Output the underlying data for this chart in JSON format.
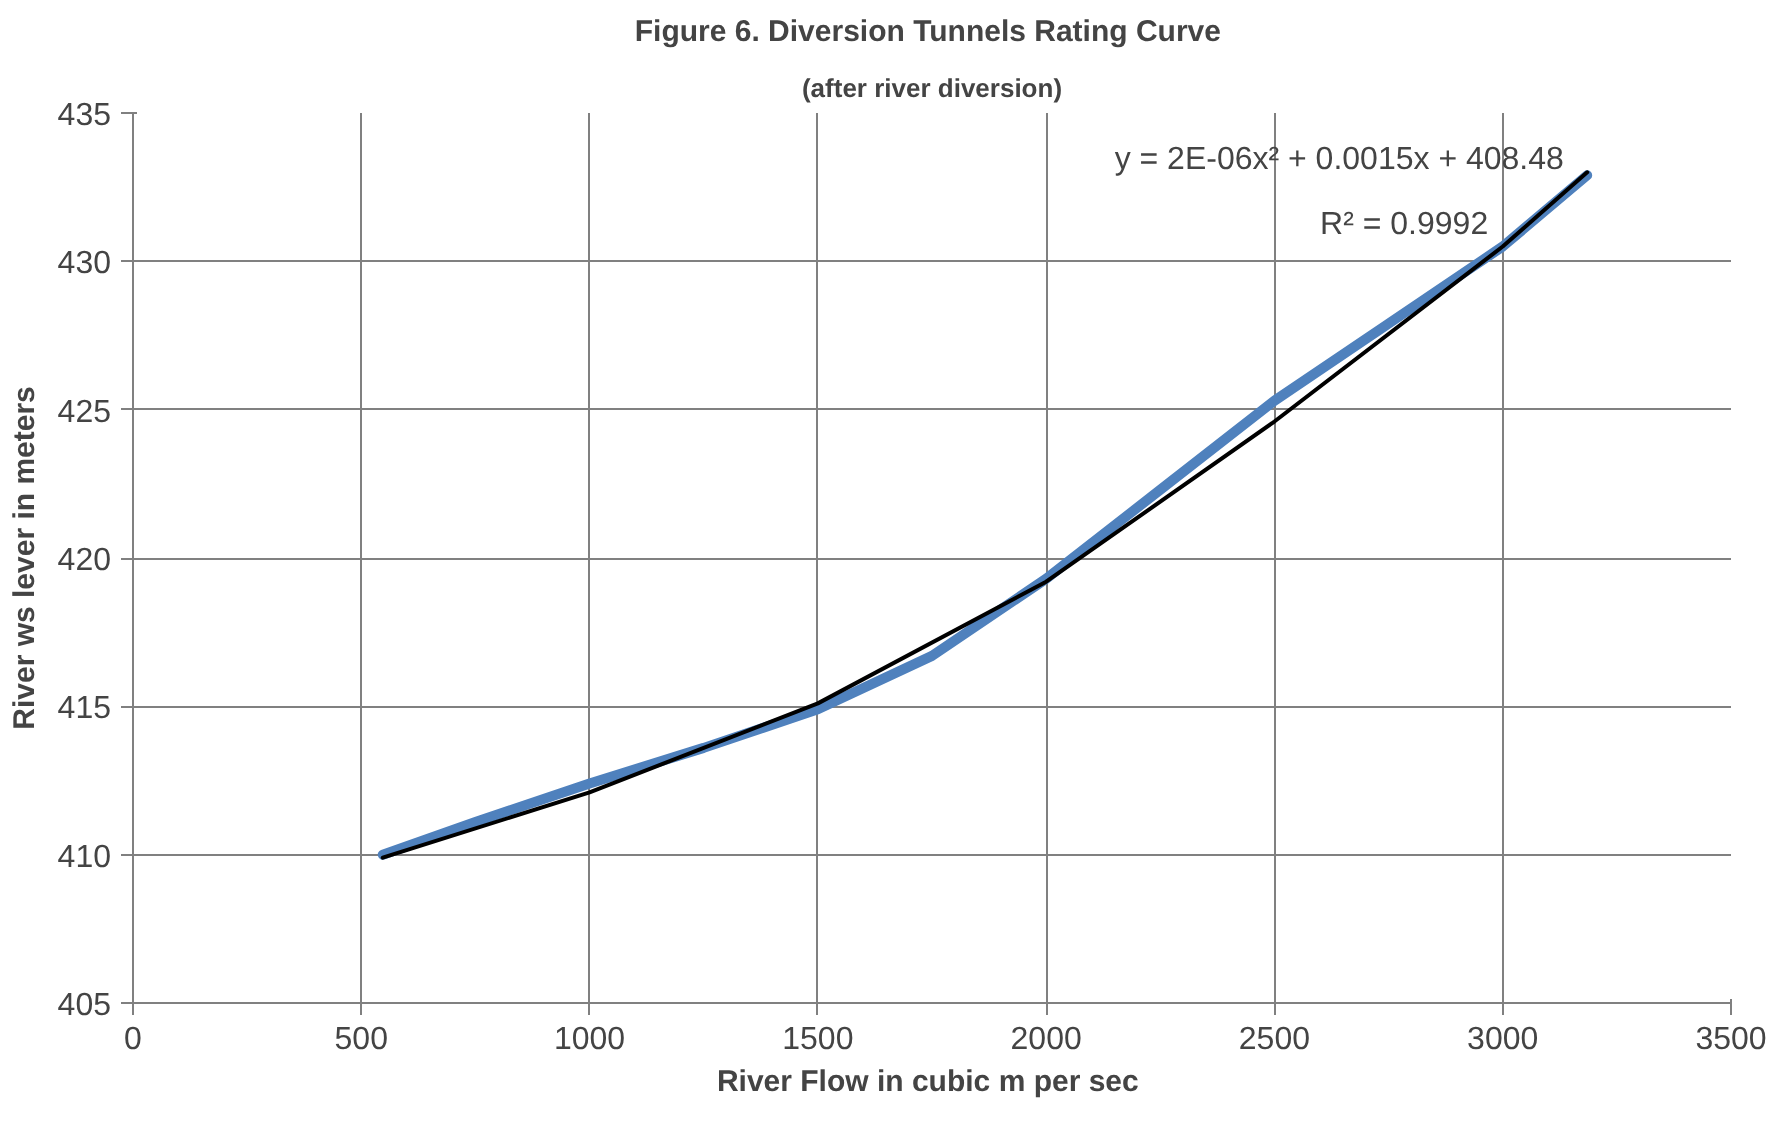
{
  "chart_data": {
    "type": "line",
    "title": "Figure 6.  Diversion Tunnels Rating Curve",
    "subtitle": "(after river diversion)",
    "xlabel": "River Flow  in cubic m per sec",
    "ylabel": "River ws lever in meters",
    "series": [
      {
        "color": "#4f81bd",
        "x": [
          547,
          750,
          1000,
          1250,
          1500,
          1750,
          2000,
          2250,
          2500,
          2750,
          3000,
          3185
        ],
        "values": [
          410.0,
          411.1,
          412.4,
          413.6,
          414.9,
          416.7,
          419.3,
          422.3,
          425.3,
          427.9,
          430.5,
          432.9
        ]
      },
      {
        "color": "#000000",
        "x": [
          547,
          1000,
          1500,
          2000,
          2500,
          3000,
          3185
        ],
        "values": [
          409.9,
          412.1,
          415.1,
          419.2,
          424.6,
          430.5,
          433.0
        ]
      }
    ],
    "annotations": [
      "y = 2E-06x² + 0.0015x + 408.48",
      "R² = 0.9992"
    ],
    "xlim": [
      0,
      3500
    ],
    "ylim": [
      405,
      435
    ],
    "xticks": [
      0,
      500,
      1000,
      1500,
      2000,
      2500,
      3000,
      3500
    ],
    "yticks": [
      405,
      410,
      415,
      420,
      425,
      430,
      435
    ],
    "grid": true,
    "marker": "none",
    "line_style": "solid"
  }
}
